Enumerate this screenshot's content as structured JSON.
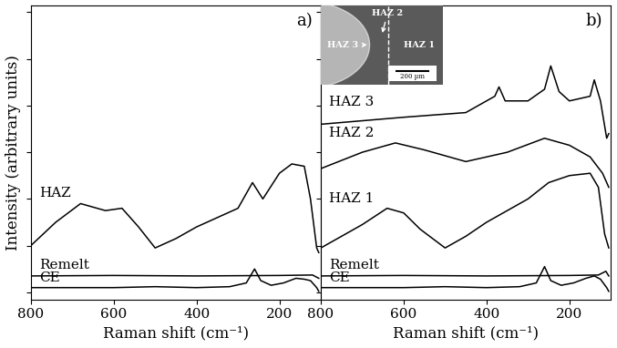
{
  "chart_data": [
    {
      "type": "line",
      "title": "a)",
      "x_label": "Raman shift (cm⁻¹)",
      "y_label": "Intensity (arbitrary units)",
      "xlim": [
        800,
        100
      ],
      "xticks": [
        800,
        600,
        400,
        200
      ],
      "ylim": [
        -0.15,
        6.15
      ],
      "yticks": [
        0,
        1,
        2,
        3,
        4,
        5,
        6
      ],
      "tick_labels": "x",
      "grid": false,
      "series": [
        {
          "name": "CE",
          "color": "#000000",
          "x": [
            800,
            700,
            600,
            500,
            400,
            320,
            280,
            260,
            245,
            220,
            190,
            160,
            140,
            125,
            110,
            105
          ],
          "values": [
            0.1,
            0.1,
            0.1,
            0.12,
            0.1,
            0.12,
            0.2,
            0.5,
            0.25,
            0.15,
            0.2,
            0.3,
            0.28,
            0.25,
            0.1,
            0.02
          ]
        },
        {
          "name": "Remelt",
          "color": "#000000",
          "x": [
            800,
            600,
            400,
            200,
            120,
            105
          ],
          "values": [
            0.35,
            0.36,
            0.35,
            0.36,
            0.37,
            0.3
          ]
        },
        {
          "name": "HAZ",
          "color": "#000000",
          "x": [
            800,
            740,
            680,
            620,
            580,
            540,
            500,
            450,
            400,
            350,
            300,
            265,
            240,
            200,
            170,
            140,
            125,
            110,
            105
          ],
          "values": [
            1.0,
            1.5,
            1.9,
            1.75,
            1.8,
            1.4,
            0.95,
            1.15,
            1.4,
            1.6,
            1.8,
            2.35,
            2.0,
            2.55,
            2.75,
            2.7,
            2.0,
            0.95,
            0.85
          ]
        }
      ]
    },
    {
      "type": "line",
      "title": "b)",
      "x_label": "Raman shift (cm⁻¹)",
      "xlim": [
        800,
        100
      ],
      "xticks": [
        800,
        600,
        400,
        200
      ],
      "ylim": [
        -0.15,
        6.15
      ],
      "yticks": [
        0,
        1,
        2,
        3,
        4,
        5,
        6
      ],
      "tick_labels": "x",
      "grid": false,
      "inset": {
        "labels": [
          "HAZ 3",
          "HAZ 2",
          "HAZ 1"
        ],
        "scale_bar": "200 µm"
      },
      "series": [
        {
          "name": "CE",
          "color": "#000000",
          "x": [
            800,
            700,
            600,
            500,
            400,
            320,
            280,
            260,
            245,
            220,
            190,
            160,
            140,
            125,
            110,
            105
          ],
          "values": [
            0.1,
            0.1,
            0.1,
            0.12,
            0.1,
            0.12,
            0.2,
            0.55,
            0.25,
            0.15,
            0.2,
            0.3,
            0.35,
            0.28,
            0.1,
            0.02
          ]
        },
        {
          "name": "Remelt",
          "color": "#000000",
          "x": [
            800,
            600,
            400,
            200,
            130,
            112,
            105
          ],
          "values": [
            0.35,
            0.36,
            0.35,
            0.36,
            0.37,
            0.45,
            0.35
          ]
        },
        {
          "name": "HAZ 1",
          "color": "#000000",
          "x": [
            800,
            700,
            640,
            600,
            560,
            500,
            450,
            400,
            300,
            250,
            200,
            150,
            130,
            115,
            105
          ],
          "values": [
            0.95,
            1.45,
            1.8,
            1.7,
            1.35,
            0.95,
            1.2,
            1.5,
            2.0,
            2.35,
            2.5,
            2.55,
            2.25,
            1.25,
            0.95
          ]
        },
        {
          "name": "HAZ 2",
          "color": "#000000",
          "x": [
            800,
            700,
            620,
            550,
            450,
            350,
            260,
            200,
            150,
            120,
            105
          ],
          "values": [
            2.65,
            3.0,
            3.2,
            3.05,
            2.8,
            3.0,
            3.3,
            3.15,
            2.9,
            2.55,
            2.25
          ]
        },
        {
          "name": "HAZ 3",
          "color": "#000000",
          "x": [
            800,
            600,
            450,
            380,
            370,
            355,
            300,
            260,
            245,
            225,
            200,
            150,
            140,
            125,
            110,
            105
          ],
          "values": [
            3.6,
            3.75,
            3.85,
            4.2,
            4.4,
            4.1,
            4.1,
            4.35,
            4.85,
            4.3,
            4.1,
            4.2,
            4.55,
            4.1,
            3.3,
            3.4
          ]
        }
      ]
    }
  ]
}
